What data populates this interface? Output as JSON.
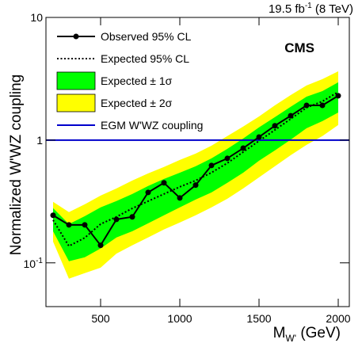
{
  "chart_data": {
    "type": "line",
    "lumi": {
      "text": "19.5 fb",
      "sup": "-1",
      "rest": " (8 TeV)"
    },
    "annotation": "CMS",
    "xlabel": {
      "main": "M",
      "sub": "W'",
      "rest": " (GeV)"
    },
    "ylabel": "Normalized W'WZ coupling",
    "log_y": true,
    "x": [
      200,
      300,
      400,
      500,
      600,
      700,
      800,
      900,
      1000,
      1100,
      1200,
      1300,
      1400,
      1500,
      1600,
      1700,
      1800,
      1900,
      2000
    ],
    "xlim": [
      155,
      2070
    ],
    "ylim": [
      0.044,
      10
    ],
    "xticks": [
      500,
      1000,
      1500,
      2000
    ],
    "yticks": [
      {
        "value": 0.1,
        "label": "10",
        "sup": "-1"
      },
      1,
      10
    ],
    "series": [
      {
        "name": "Expected ± 2σ",
        "style": "band",
        "color": "#ffff00",
        "upper": [
          0.314,
          0.259,
          0.3,
          0.353,
          0.404,
          0.469,
          0.536,
          0.604,
          0.69,
          0.777,
          0.902,
          1.08,
          1.29,
          1.56,
          1.92,
          2.33,
          2.79,
          3.14,
          3.64
        ],
        "lower": [
          0.149,
          0.0743,
          0.0824,
          0.0914,
          0.119,
          0.139,
          0.161,
          0.187,
          0.213,
          0.244,
          0.283,
          0.333,
          0.404,
          0.497,
          0.612,
          0.754,
          0.915,
          1.08,
          1.33
        ]
      },
      {
        "name": "Expected ± 1σ",
        "style": "band",
        "color": "#00ff00",
        "upper": [
          0.279,
          0.207,
          0.24,
          0.283,
          0.319,
          0.364,
          0.423,
          0.483,
          0.543,
          0.612,
          0.711,
          0.849,
          1.03,
          1.27,
          1.54,
          1.87,
          2.26,
          2.51,
          2.96
        ],
        "lower": [
          0.181,
          0.103,
          0.111,
          0.131,
          0.161,
          0.181,
          0.21,
          0.244,
          0.283,
          0.328,
          0.375,
          0.449,
          0.543,
          0.68,
          0.824,
          1.01,
          1.25,
          1.43,
          1.68
        ]
      },
      {
        "name": "Expected 95% CL",
        "style": "dotted",
        "color": "#000000",
        "values": [
          0.223,
          0.137,
          0.16,
          0.207,
          0.237,
          0.278,
          0.318,
          0.364,
          0.416,
          0.469,
          0.544,
          0.65,
          0.8,
          0.985,
          1.21,
          1.49,
          1.84,
          2.07,
          2.47
        ]
      },
      {
        "name": "EGM W'WZ coupling",
        "style": "hline",
        "color": "#0000cc",
        "value": 1
      },
      {
        "name": "Observed 95% CL",
        "style": "markers",
        "color": "#000000",
        "values": [
          0.244,
          0.204,
          0.204,
          0.139,
          0.226,
          0.237,
          0.375,
          0.449,
          0.338,
          0.43,
          0.622,
          0.71,
          0.86,
          1.06,
          1.31,
          1.58,
          1.92,
          1.92,
          2.3
        ]
      }
    ]
  }
}
